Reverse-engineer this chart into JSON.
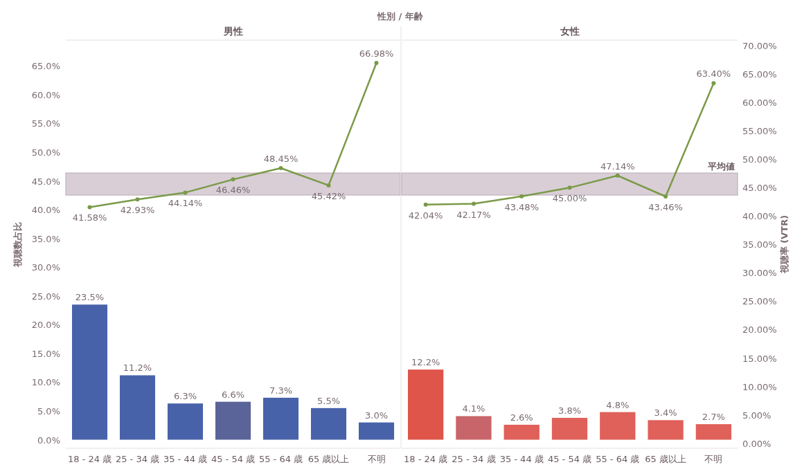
{
  "chart_data": [
    {
      "type": "bar",
      "title": "性別 / 年齢",
      "subtitle": "男性",
      "ylabel": "視聴数占比",
      "categories": [
        "18 - 24 歳",
        "25 - 34 歳",
        "35 - 44 歳",
        "45 - 54 歳",
        "55 - 64 歳",
        "65 歳以上",
        "不明"
      ],
      "tick_labels": [
        "x",
        "y"
      ],
      "grid": false,
      "ylim": [
        -1.5,
        69.5
      ],
      "yticks": [
        {
          "value": 0,
          "label": "0.0%"
        },
        {
          "value": 5,
          "label": "5.0%"
        },
        {
          "value": 10,
          "label": "10.0%"
        },
        {
          "value": 15,
          "label": "15.0%"
        },
        {
          "value": 20,
          "label": "20.0%"
        },
        {
          "value": 25,
          "label": "25.0%"
        },
        {
          "value": 30,
          "label": "30.0%"
        },
        {
          "value": 35,
          "label": "35.0%"
        },
        {
          "value": 40,
          "label": "40.0%"
        },
        {
          "value": 45,
          "label": "45.0%"
        },
        {
          "value": 50,
          "label": "50.0%"
        },
        {
          "value": 55,
          "label": "55.0%"
        },
        {
          "value": 60,
          "label": "60.0%"
        },
        {
          "value": 65,
          "label": "65.0%"
        }
      ],
      "y2lim": [
        -0.9,
        71
      ],
      "bands": [
        {
          "axis": "y2",
          "from": 43.7,
          "to": 47.6,
          "color": "#d9ced6"
        }
      ],
      "series": [
        {
          "colors": [
            "#4862aa",
            "#4862aa",
            "#4862aa",
            "#5a6498",
            "#4862aa",
            "#4862aa",
            "#4862aa"
          ],
          "values": [
            23.5,
            11.2,
            6.3,
            6.6,
            7.3,
            5.5,
            3.0
          ],
          "value_labels": [
            "23.5%",
            "11.2%",
            "6.3%",
            "6.6%",
            "7.3%",
            "5.5%",
            "3.0%"
          ]
        },
        {
          "type": "line",
          "axis": "y2",
          "color": "#7a9a48",
          "marker": "circle",
          "values": [
            41.58,
            42.93,
            44.14,
            46.46,
            48.45,
            45.42,
            66.98
          ],
          "value_labels": [
            "41.58%",
            "42.93%",
            "44.14%",
            "46.46%",
            "48.45%",
            "45.42%",
            "66.98%"
          ]
        }
      ]
    },
    {
      "type": "bar",
      "subtitle": "女性",
      "y2label": "視聴率 (VTR)",
      "categories": [
        "18 - 24 歳",
        "25 - 34 歳",
        "35 - 44 歳",
        "45 - 54 歳",
        "55 - 64 歳",
        "65 歳以上",
        "不明"
      ],
      "tick_labels": [
        "x",
        "y2"
      ],
      "grid": false,
      "ylim": [
        -1.5,
        69.5
      ],
      "y2lim": [
        -0.9,
        71
      ],
      "y2ticks": [
        {
          "value": 0,
          "label": "0.00%"
        },
        {
          "value": 5,
          "label": "5.00%"
        },
        {
          "value": 10,
          "label": "10.00%"
        },
        {
          "value": 15,
          "label": "15.00%"
        },
        {
          "value": 20,
          "label": "20.00%"
        },
        {
          "value": 25,
          "label": "25.00%"
        },
        {
          "value": 30,
          "label": "30.00%"
        },
        {
          "value": 35,
          "label": "35.00%"
        },
        {
          "value": 40,
          "label": "40.00%"
        },
        {
          "value": 45,
          "label": "45.00%"
        },
        {
          "value": 50,
          "label": "50.00%"
        },
        {
          "value": 55,
          "label": "55.00%"
        },
        {
          "value": 60,
          "label": "60.00%"
        },
        {
          "value": 65,
          "label": "65.00%"
        },
        {
          "value": 70,
          "label": "70.00%"
        }
      ],
      "bands": [
        {
          "axis": "y2",
          "from": 43.7,
          "to": 47.6,
          "label": "平均値",
          "color": "#d9ced6"
        }
      ],
      "series": [
        {
          "colors": [
            "#e0554a",
            "#c8656a",
            "#e0605a",
            "#e0605a",
            "#e0605a",
            "#e0605a",
            "#e0605a"
          ],
          "values": [
            12.2,
            4.1,
            2.6,
            3.8,
            4.8,
            3.4,
            2.7
          ],
          "value_labels": [
            "12.2%",
            "4.1%",
            "2.6%",
            "3.8%",
            "4.8%",
            "3.4%",
            "2.7%"
          ]
        },
        {
          "type": "line",
          "axis": "y2",
          "color": "#7a9a48",
          "marker": "circle",
          "values": [
            42.04,
            42.17,
            43.48,
            45.0,
            47.14,
            43.46,
            63.4
          ],
          "value_labels": [
            "42.04%",
            "42.17%",
            "43.48%",
            "45.00%",
            "47.14%",
            "43.46%",
            "63.40%"
          ]
        }
      ]
    }
  ]
}
